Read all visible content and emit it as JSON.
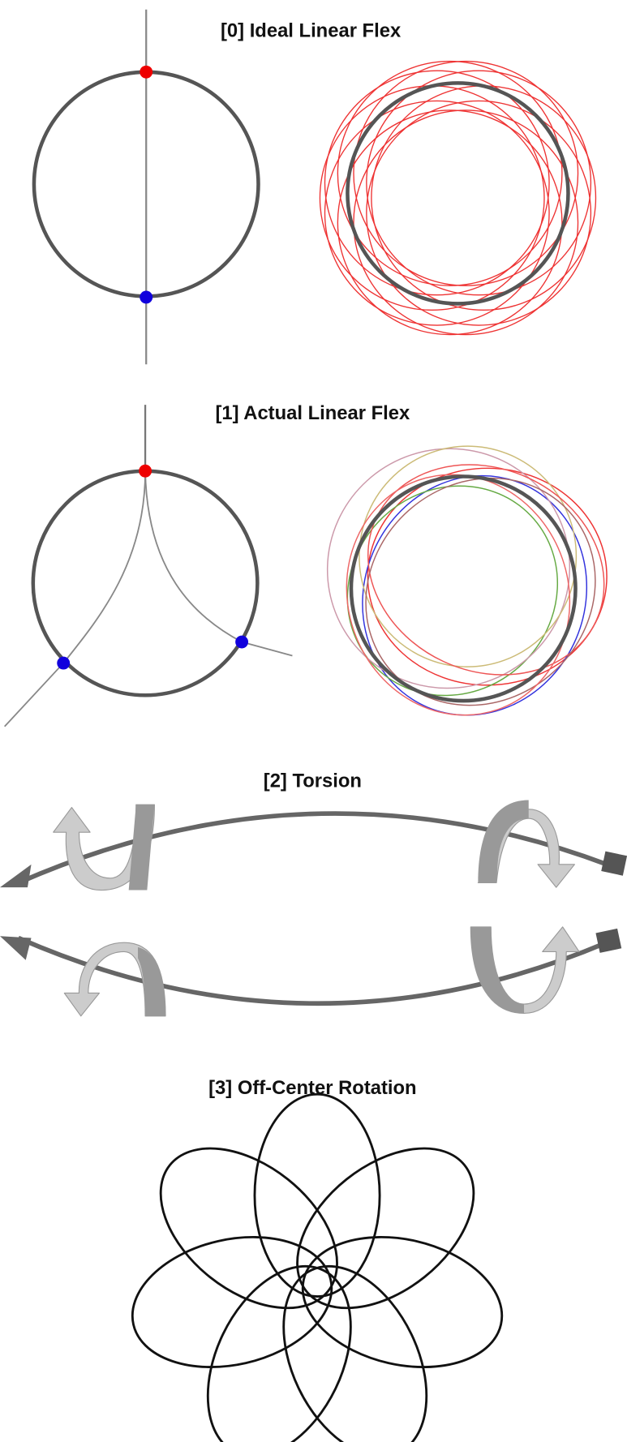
{
  "panels": [
    {
      "title": "[0] Ideal Linear Flex"
    },
    {
      "title": "[1] Actual Linear Flex"
    },
    {
      "title": "[2] Torsion"
    },
    {
      "title": "[3] Off-Center Rotation"
    }
  ]
}
